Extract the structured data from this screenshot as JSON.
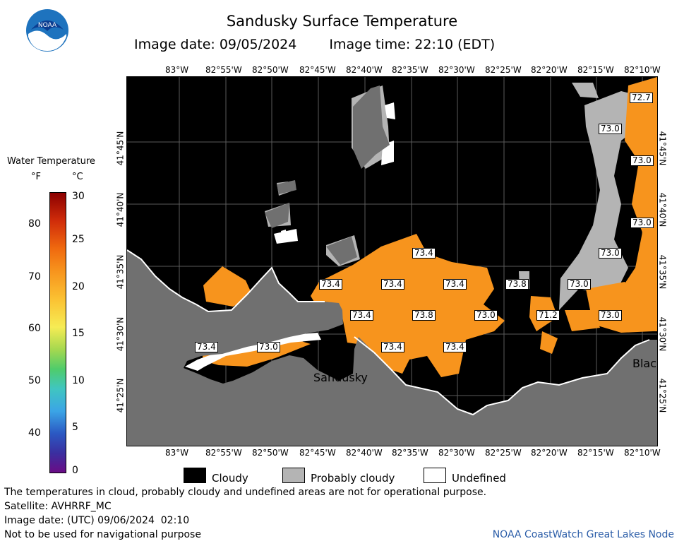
{
  "header": {
    "title": "Sandusky Surface Temperature",
    "image_date": "Image date: 09/05/2024",
    "image_time": "Image time: 22:10 (EDT)"
  },
  "logo": {
    "text": "NOAA"
  },
  "axes": {
    "top_ticks": [
      "83°W",
      "82°55'W",
      "82°50'W",
      "82°45'W",
      "82°40'W",
      "82°35'W",
      "82°30'W",
      "82°25'W",
      "82°20'W",
      "82°15'W",
      "82°10'W"
    ],
    "bottom_ticks": [
      "83°W",
      "82°55'W",
      "82°50'W",
      "82°45'W",
      "82°40'W",
      "82°35'W",
      "82°30'W",
      "82°25'W",
      "82°20'W",
      "82°15'W",
      "82°10'W"
    ],
    "left_ticks": [
      "41°45'N",
      "41°40'N",
      "41°35'N",
      "41°30'N",
      "41°25'N"
    ],
    "right_ticks": [
      "41°45'N",
      "41°40'N",
      "41°35'N",
      "41°30'N",
      "41°25'N"
    ]
  },
  "place_labels": {
    "sandusky": "Sandusky",
    "blac": "Blac"
  },
  "temp_labels": [
    {
      "text": "72.7"
    },
    {
      "text": "73.0"
    },
    {
      "text": "73.0"
    },
    {
      "text": "73.0"
    },
    {
      "text": "73.0"
    },
    {
      "text": "73.4"
    },
    {
      "text": "73.4"
    },
    {
      "text": "73.4"
    },
    {
      "text": "73.4"
    },
    {
      "text": "73.8"
    },
    {
      "text": "73.0"
    },
    {
      "text": "73.4"
    },
    {
      "text": "73.8"
    },
    {
      "text": "73.0"
    },
    {
      "text": "71.2"
    },
    {
      "text": "73.0"
    },
    {
      "text": "73.4"
    },
    {
      "text": "73.0"
    },
    {
      "text": "73.4"
    },
    {
      "text": "73.4"
    }
  ],
  "legend": {
    "title": "Water Temperature",
    "unit_f": "°F",
    "unit_c": "°C",
    "f_ticks": [
      "80",
      "70",
      "60",
      "50",
      "40"
    ],
    "c_ticks": [
      "30",
      "25",
      "20",
      "15",
      "10",
      "5",
      "0"
    ]
  },
  "key": {
    "cloudy": "Cloudy",
    "probably_cloudy": "Probably cloudy",
    "undefined": "Undefined",
    "colors": {
      "cloudy": "#000000",
      "probably_cloudy": "#b4b4b4",
      "undefined": "#ffffff"
    }
  },
  "footer": {
    "disclaimer": "The temperatures in cloud, probably cloudy and undefined areas are not for operational purpose.",
    "satellite": "Satellite: AVHRRF_MC",
    "utc_date": "Image date: (UTC) 09/06/2024  02:10",
    "nav_warning": "Not to be used for navigational purpose",
    "credit": "NOAA CoastWatch Great Lakes Node"
  },
  "colors": {
    "land": "#707070",
    "water_temp": "#f7941d",
    "accent": "#2b5da8"
  }
}
